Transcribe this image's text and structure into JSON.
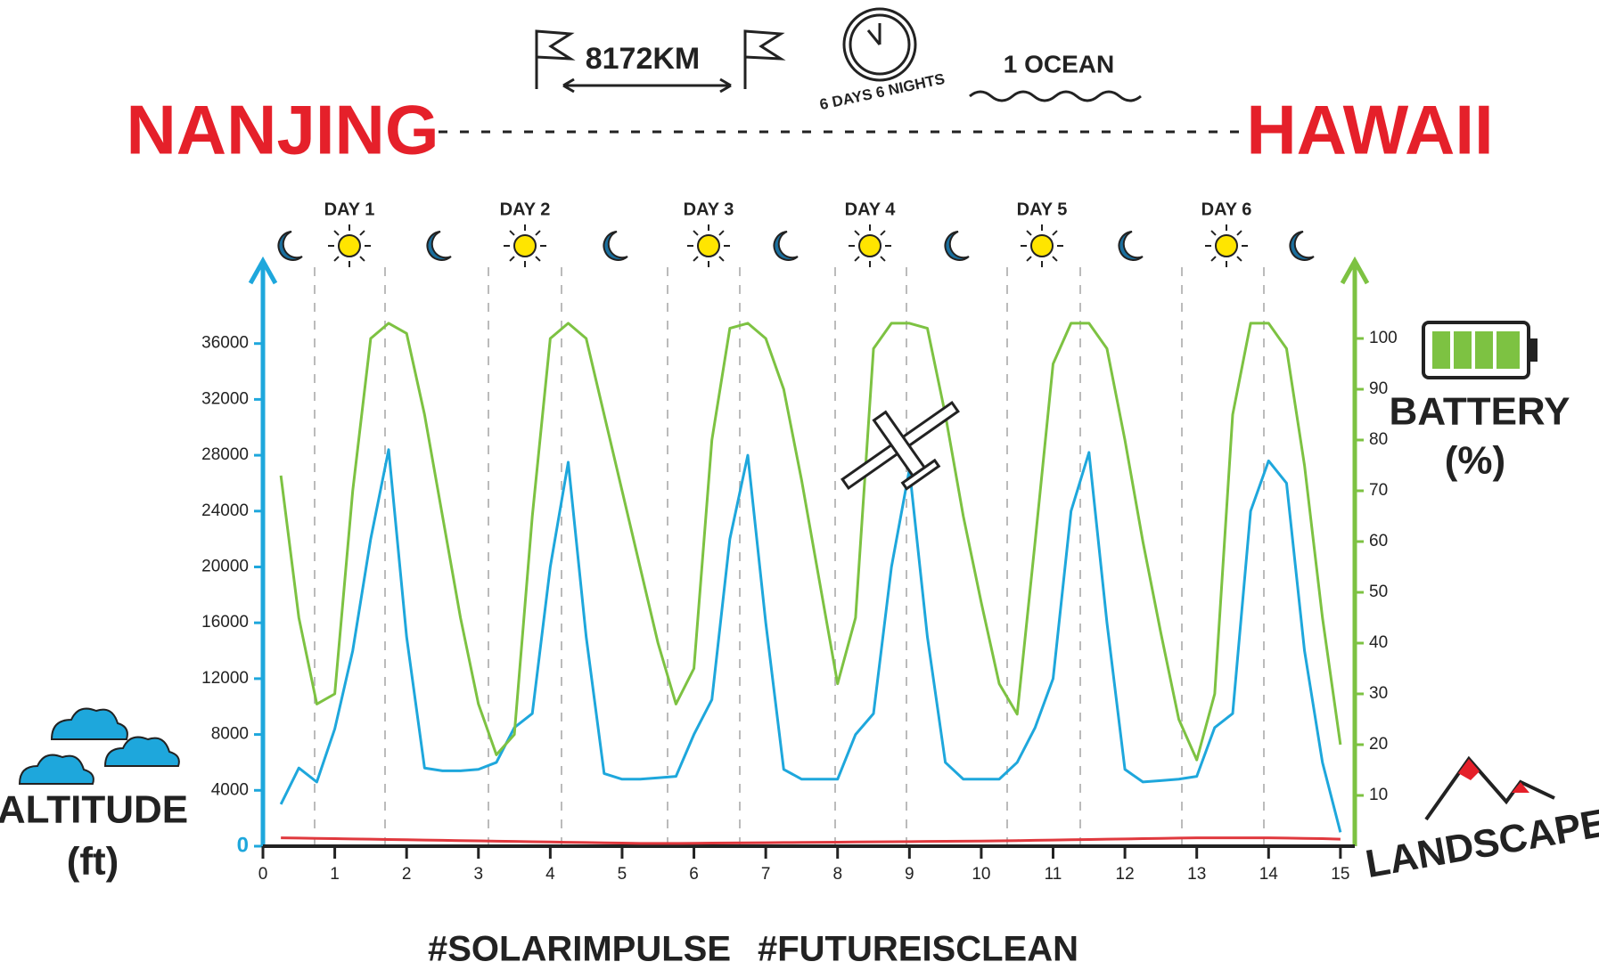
{
  "header": {
    "distance": "8172KM",
    "duration": "6 DAYS 6 NIGHTS",
    "oceans": "1 OCEAN",
    "origin": "NANJING",
    "destination": "HAWAII",
    "days": [
      "DAY 1",
      "DAY 2",
      "DAY 3",
      "DAY 4",
      "DAY 5",
      "DAY 6"
    ]
  },
  "hashtags": [
    "#SOLARIMPULSE",
    "#FUTUREISCLEAN"
  ],
  "chart_data": {
    "type": "line",
    "y_label": "(ft)",
    "y2_label": "(%)",
    "xlim": [
      0,
      15.2
    ],
    "xticks": [
      0,
      1,
      2,
      3,
      4,
      5,
      6,
      7,
      8,
      9,
      10,
      11,
      12,
      13,
      14,
      15
    ],
    "ylim": [
      0,
      40000
    ],
    "yticks": [
      0,
      4000,
      8000,
      12000,
      16000,
      20000,
      24000,
      28000,
      32000,
      36000
    ],
    "y2lim": [
      0,
      110
    ],
    "y2ticks": [
      10,
      20,
      30,
      40,
      50,
      60,
      70,
      80,
      90,
      100
    ],
    "x": [
      0.25,
      0.5,
      0.75,
      1,
      1.25,
      1.5,
      1.75,
      2,
      2.25,
      2.5,
      2.75,
      3,
      3.25,
      3.5,
      3.75,
      4,
      4.25,
      4.5,
      4.75,
      5,
      5.25,
      5.5,
      5.75,
      6,
      6.25,
      6.5,
      6.75,
      7,
      7.25,
      7.5,
      7.75,
      8,
      8.25,
      8.5,
      8.75,
      9,
      9.25,
      9.5,
      9.75,
      10,
      10.25,
      10.5,
      10.75,
      11,
      11.25,
      11.5,
      11.75,
      12,
      12.25,
      12.5,
      12.75,
      13,
      13.25,
      13.5,
      13.75,
      14,
      14.25,
      14.5,
      14.75,
      15
    ],
    "series": [
      {
        "name": "ALTITUDE",
        "color": "#1ea7dc",
        "values": [
          3000,
          5600,
          4600,
          8400,
          14000,
          22000,
          28400,
          15000,
          5600,
          5400,
          5400,
          5500,
          6000,
          8500,
          9500,
          20000,
          27500,
          15000,
          5200,
          4800,
          4800,
          4900,
          5000,
          8000,
          10500,
          22000,
          28000,
          16000,
          5500,
          4800,
          4800,
          4800,
          8000,
          9500,
          20000,
          27000,
          15000,
          6000,
          4800,
          4800,
          4800,
          6000,
          8500,
          12000,
          24000,
          28200,
          16000,
          5500,
          4600,
          4700,
          4800,
          5000,
          8500,
          9500,
          24000,
          27600,
          26000,
          14000,
          6000,
          1000
        ]
      },
      {
        "name": "BATTERY",
        "color": "#7dc242",
        "axis": "y2",
        "values": [
          73,
          45,
          28,
          30,
          70,
          100,
          103,
          101,
          85,
          65,
          45,
          28,
          18,
          22,
          65,
          100,
          103,
          100,
          85,
          70,
          55,
          40,
          28,
          35,
          80,
          102,
          103,
          100,
          90,
          72,
          52,
          32,
          45,
          98,
          103,
          103,
          102,
          85,
          65,
          48,
          32,
          26,
          60,
          95,
          103,
          103,
          98,
          80,
          60,
          42,
          25,
          17,
          30,
          85,
          103,
          103,
          98,
          75,
          45,
          20
        ]
      },
      {
        "name": "LANDSCAPE",
        "color": "#e0393e",
        "values": [
          600,
          580,
          560,
          540,
          520,
          500,
          480,
          460,
          440,
          420,
          400,
          380,
          360,
          340,
          320,
          300,
          280,
          260,
          240,
          220,
          200,
          200,
          200,
          210,
          220,
          230,
          240,
          250,
          260,
          270,
          280,
          290,
          300,
          310,
          320,
          330,
          340,
          350,
          360,
          370,
          380,
          400,
          420,
          440,
          460,
          480,
          500,
          520,
          540,
          560,
          580,
          600,
          600,
          600,
          600,
          600,
          580,
          560,
          540,
          500
        ]
      }
    ]
  }
}
